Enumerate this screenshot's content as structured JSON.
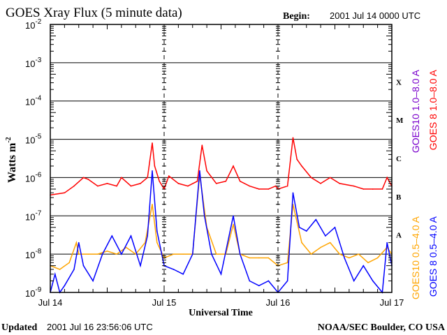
{
  "chart_data": {
    "type": "line",
    "title": "GOES Xray Flux (5 minute data)",
    "begin_label": "Begin:",
    "begin_value": "2001 Jul 14 0000 UTC",
    "xlabel": "Universal Time",
    "ylabel": "Watts m",
    "ylabel_exp": "-2",
    "y_scale": "log",
    "ylim": [
      1e-09,
      0.01
    ],
    "xlim": [
      "2001-07-14T00:00",
      "2001-07-17T00:00"
    ],
    "x_tick_labels": [
      "Jul 14",
      "Jul 15",
      "Jul 16",
      "Jul 17"
    ],
    "y_tick_labels": [
      {
        "base": "10",
        "exp": "-2"
      },
      {
        "base": "10",
        "exp": "-3"
      },
      {
        "base": "10",
        "exp": "-4"
      },
      {
        "base": "10",
        "exp": "-5"
      },
      {
        "base": "10",
        "exp": "-6"
      },
      {
        "base": "10",
        "exp": "-7"
      },
      {
        "base": "10",
        "exp": "-8"
      },
      {
        "base": "10",
        "exp": "-9"
      }
    ],
    "flare_classes": [
      "X",
      "M",
      "C",
      "B",
      "A"
    ],
    "grid": "horizontal lines at each decade",
    "legend_placement": "right, vertical",
    "series": [
      {
        "name": "GOES10 1.0–8.0 A",
        "color": "#7a00cc",
        "points": []
      },
      {
        "name": "GOES 8 1.0–8.0 A",
        "color": "#ff0000",
        "points": [
          [
            "2001-07-14T00:00",
            3.5e-07
          ],
          [
            "2001-07-14T03:00",
            4e-07
          ],
          [
            "2001-07-14T05:00",
            6e-07
          ],
          [
            "2001-07-14T07:00",
            1e-06
          ],
          [
            "2001-07-14T08:00",
            9e-07
          ],
          [
            "2001-07-14T10:00",
            6e-07
          ],
          [
            "2001-07-14T12:00",
            7e-07
          ],
          [
            "2001-07-14T14:00",
            6e-07
          ],
          [
            "2001-07-14T15:00",
            1e-06
          ],
          [
            "2001-07-14T17:00",
            6e-07
          ],
          [
            "2001-07-14T19:00",
            7e-07
          ],
          [
            "2001-07-14T20:30",
            1e-06
          ],
          [
            "2001-07-14T21:30",
            8e-06
          ],
          [
            "2001-07-14T22:00",
            2e-06
          ],
          [
            "2001-07-14T23:00",
            8e-07
          ],
          [
            "2001-07-15T00:00",
            5e-07
          ],
          [
            "2001-07-15T01:00",
            1.1e-06
          ],
          [
            "2001-07-15T03:00",
            7e-07
          ],
          [
            "2001-07-15T05:00",
            6e-07
          ],
          [
            "2001-07-15T07:00",
            8e-07
          ],
          [
            "2001-07-15T08:00",
            7e-06
          ],
          [
            "2001-07-15T09:00",
            1.5e-06
          ],
          [
            "2001-07-15T11:00",
            7e-07
          ],
          [
            "2001-07-15T13:00",
            8e-07
          ],
          [
            "2001-07-15T14:35",
            2e-06
          ],
          [
            "2001-07-15T16:00",
            8e-07
          ],
          [
            "2001-07-15T18:00",
            6e-07
          ],
          [
            "2001-07-15T20:00",
            5e-07
          ],
          [
            "2001-07-15T22:00",
            5e-07
          ],
          [
            "2001-07-15T23:30",
            6e-07
          ],
          [
            "2001-07-16T00:00",
            5e-07
          ],
          [
            "2001-07-16T02:00",
            6e-07
          ],
          [
            "2001-07-16T03:10",
            1.1e-05
          ],
          [
            "2001-07-16T04:00",
            3e-06
          ],
          [
            "2001-07-16T05:00",
            2e-06
          ],
          [
            "2001-07-16T07:00",
            1e-06
          ],
          [
            "2001-07-16T09:00",
            7e-07
          ],
          [
            "2001-07-16T11:00",
            1e-06
          ],
          [
            "2001-07-16T13:00",
            7e-07
          ],
          [
            "2001-07-16T16:00",
            6e-07
          ],
          [
            "2001-07-16T18:00",
            5e-07
          ],
          [
            "2001-07-16T20:00",
            5e-07
          ],
          [
            "2001-07-16T22:00",
            5e-07
          ],
          [
            "2001-07-16T23:00",
            1e-06
          ],
          [
            "2001-07-17T00:00",
            6e-07
          ]
        ]
      },
      {
        "name": "GOES10 0.5–4.0 A",
        "color": "#ffa500",
        "points": [
          [
            "2001-07-14T00:00",
            5e-09
          ],
          [
            "2001-07-14T02:00",
            4e-09
          ],
          [
            "2001-07-14T04:00",
            6e-09
          ],
          [
            "2001-07-14T05:30",
            2e-08
          ],
          [
            "2001-07-14T06:00",
            1e-08
          ],
          [
            "2001-07-14T08:00",
            1e-08
          ],
          [
            "2001-07-14T10:00",
            1e-08
          ],
          [
            "2001-07-14T12:00",
            1.2e-08
          ],
          [
            "2001-07-14T14:00",
            1e-08
          ],
          [
            "2001-07-14T16:00",
            1.5e-08
          ],
          [
            "2001-07-14T18:00",
            1e-08
          ],
          [
            "2001-07-14T20:00",
            2e-08
          ],
          [
            "2001-07-14T21:30",
            2e-07
          ],
          [
            "2001-07-14T22:30",
            2e-08
          ],
          [
            "2001-07-15T00:00",
            8e-09
          ],
          [
            "2001-07-15T02:00",
            1e-08
          ],
          [
            "2001-07-15T04:00",
            1e-08
          ],
          [
            "2001-07-15T06:00",
            1e-08
          ],
          [
            "2001-07-15T07:30",
            1.2e-06
          ],
          [
            "2001-07-15T09:00",
            5e-08
          ],
          [
            "2001-07-15T11:00",
            1e-08
          ],
          [
            "2001-07-15T13:00",
            1e-08
          ],
          [
            "2001-07-15T14:35",
            6e-08
          ],
          [
            "2001-07-15T16:00",
            1e-08
          ],
          [
            "2001-07-15T18:00",
            8e-09
          ],
          [
            "2001-07-15T20:00",
            8e-09
          ],
          [
            "2001-07-15T22:00",
            8e-09
          ],
          [
            "2001-07-16T00:00",
            5e-09
          ],
          [
            "2001-07-16T02:00",
            6e-09
          ],
          [
            "2001-07-16T03:10",
            2e-07
          ],
          [
            "2001-07-16T05:00",
            2e-08
          ],
          [
            "2001-07-16T07:00",
            1e-08
          ],
          [
            "2001-07-16T09:00",
            1.5e-08
          ],
          [
            "2001-07-16T11:00",
            2e-08
          ],
          [
            "2001-07-16T13:00",
            1e-08
          ],
          [
            "2001-07-16T15:00",
            8e-09
          ],
          [
            "2001-07-16T17:00",
            1e-08
          ],
          [
            "2001-07-16T19:00",
            6e-09
          ],
          [
            "2001-07-16T21:00",
            8e-09
          ],
          [
            "2001-07-16T23:00",
            1.5e-08
          ],
          [
            "2001-07-17T00:00",
            1e-08
          ]
        ]
      },
      {
        "name": "GOES 8 0.5–4.0 A",
        "color": "#0000ff",
        "points": [
          [
            "2001-07-14T00:00",
            1e-09
          ],
          [
            "2001-07-14T01:00",
            3e-09
          ],
          [
            "2001-07-14T02:00",
            1e-09
          ],
          [
            "2001-07-14T03:00",
            1.5e-09
          ],
          [
            "2001-07-14T05:00",
            4e-09
          ],
          [
            "2001-07-14T06:00",
            2e-08
          ],
          [
            "2001-07-14T07:00",
            5e-09
          ],
          [
            "2001-07-14T09:00",
            2e-09
          ],
          [
            "2001-07-14T11:00",
            1e-08
          ],
          [
            "2001-07-14T13:00",
            3e-08
          ],
          [
            "2001-07-14T15:00",
            1e-08
          ],
          [
            "2001-07-14T17:00",
            3e-08
          ],
          [
            "2001-07-14T19:00",
            5e-09
          ],
          [
            "2001-07-14T20:30",
            3e-08
          ],
          [
            "2001-07-14T21:30",
            1.5e-06
          ],
          [
            "2001-07-14T22:30",
            4e-08
          ],
          [
            "2001-07-14T23:30",
            1e-08
          ],
          [
            "2001-07-15T00:00",
            5e-09
          ],
          [
            "2001-07-15T02:00",
            4e-09
          ],
          [
            "2001-07-15T04:00",
            3e-09
          ],
          [
            "2001-07-15T06:00",
            1e-08
          ],
          [
            "2001-07-15T07:30",
            1.5e-06
          ],
          [
            "2001-07-15T08:30",
            1e-07
          ],
          [
            "2001-07-15T10:00",
            1e-08
          ],
          [
            "2001-07-15T12:00",
            3e-09
          ],
          [
            "2001-07-15T14:35",
            1e-07
          ],
          [
            "2001-07-15T16:00",
            1e-08
          ],
          [
            "2001-07-15T18:00",
            2e-09
          ],
          [
            "2001-07-15T20:00",
            1.5e-09
          ],
          [
            "2001-07-15T22:00",
            2e-09
          ],
          [
            "2001-07-16T00:00",
            1e-09
          ],
          [
            "2001-07-16T02:00",
            2e-09
          ],
          [
            "2001-07-16T03:10",
            4e-07
          ],
          [
            "2001-07-16T04:30",
            5e-08
          ],
          [
            "2001-07-16T06:00",
            4e-08
          ],
          [
            "2001-07-16T08:00",
            8e-08
          ],
          [
            "2001-07-16T10:00",
            3e-08
          ],
          [
            "2001-07-16T12:00",
            5e-08
          ],
          [
            "2001-07-16T14:00",
            8e-09
          ],
          [
            "2001-07-16T16:00",
            2e-09
          ],
          [
            "2001-07-16T18:00",
            5e-09
          ],
          [
            "2001-07-16T20:00",
            2e-09
          ],
          [
            "2001-07-16T22:00",
            1e-09
          ],
          [
            "2001-07-16T23:00",
            2e-08
          ],
          [
            "2001-07-17T00:00",
            5e-09
          ]
        ]
      }
    ]
  },
  "footer": {
    "updated_label": "Updated",
    "updated_value": "2001 Jul 16 23:56:06 UTC",
    "credit": "NOAA/SEC Boulder, CO USA"
  }
}
